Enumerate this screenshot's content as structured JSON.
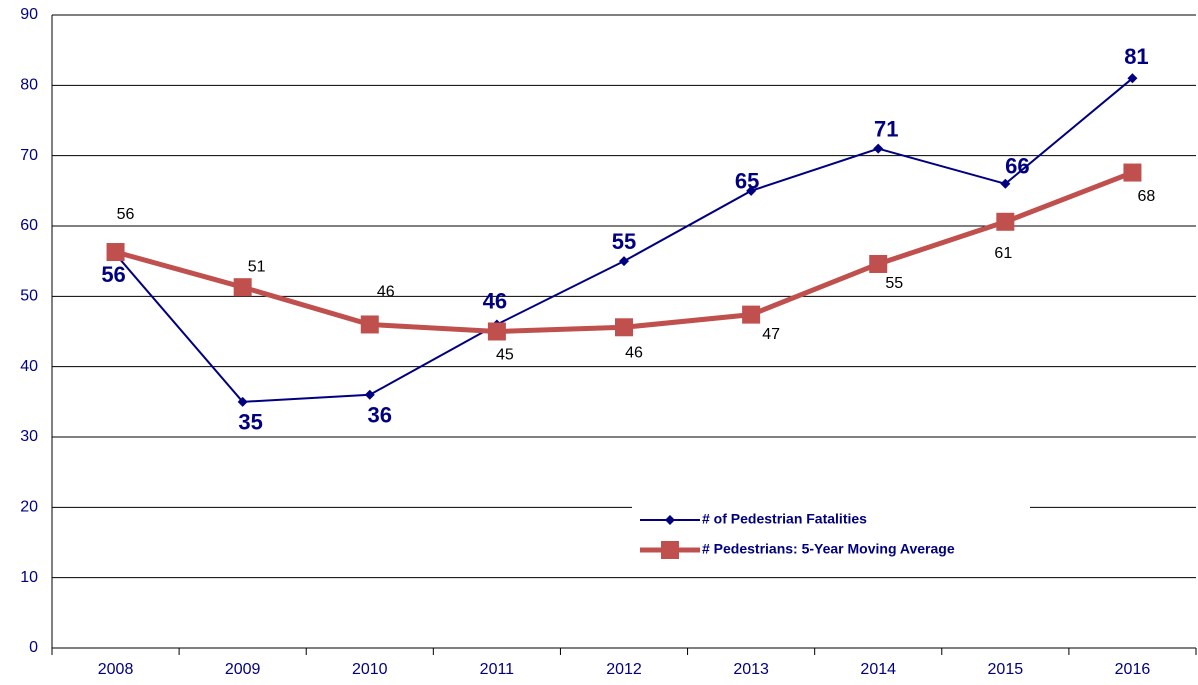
{
  "chart_data": {
    "type": "line",
    "categories": [
      "2008",
      "2009",
      "2010",
      "2011",
      "2012",
      "2013",
      "2014",
      "2015",
      "2016"
    ],
    "series": [
      {
        "name": "# of Pedestrian Fatalities",
        "color": "#000080",
        "values": [
          56,
          35,
          36,
          46,
          55,
          65,
          71,
          66,
          81
        ]
      },
      {
        "name": "# Pedestrians: 5-Year Moving Average",
        "color": "#c0504d",
        "values": [
          56.3,
          51.3,
          46,
          45,
          45.6,
          47.4,
          54.6,
          60.6,
          67.6
        ],
        "value_labels": [
          "56",
          "51",
          "46",
          "45",
          "46",
          "47",
          "55",
          "61",
          "68"
        ]
      }
    ],
    "ylim": [
      0,
      90
    ],
    "yticks": [
      0,
      10,
      20,
      30,
      40,
      50,
      60,
      70,
      80,
      90
    ],
    "grid": true,
    "legend": "lower right"
  }
}
